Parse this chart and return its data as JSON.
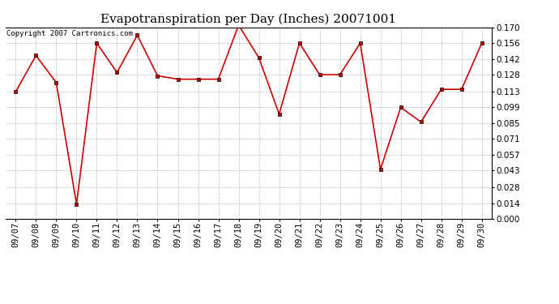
{
  "title": "Evapotranspiration per Day (Inches) 20071001",
  "copyright_text": "Copyright 2007 Cartronics.com",
  "dates": [
    "09/07",
    "09/08",
    "09/09",
    "09/10",
    "09/11",
    "09/12",
    "09/13",
    "09/14",
    "09/15",
    "09/16",
    "09/17",
    "09/18",
    "09/19",
    "09/20",
    "09/21",
    "09/22",
    "09/23",
    "09/24",
    "09/25",
    "09/26",
    "09/27",
    "09/28",
    "09/29",
    "09/30"
  ],
  "values": [
    0.113,
    0.145,
    0.121,
    0.013,
    0.156,
    0.13,
    0.163,
    0.127,
    0.124,
    0.124,
    0.124,
    0.172,
    0.143,
    0.093,
    0.156,
    0.128,
    0.128,
    0.156,
    0.044,
    0.099,
    0.086,
    0.115,
    0.115,
    0.156
  ],
  "line_color": "#cc0000",
  "marker": "s",
  "marker_size": 2.5,
  "line_width": 1.2,
  "ylim": [
    0.0,
    0.17
  ],
  "yticks": [
    0.0,
    0.014,
    0.028,
    0.043,
    0.057,
    0.071,
    0.085,
    0.099,
    0.113,
    0.128,
    0.142,
    0.156,
    0.17
  ],
  "background_color": "#ffffff",
  "grid_color": "#bbbbbb",
  "title_fontsize": 11,
  "copyright_fontsize": 6.5,
  "tick_fontsize": 7.5
}
